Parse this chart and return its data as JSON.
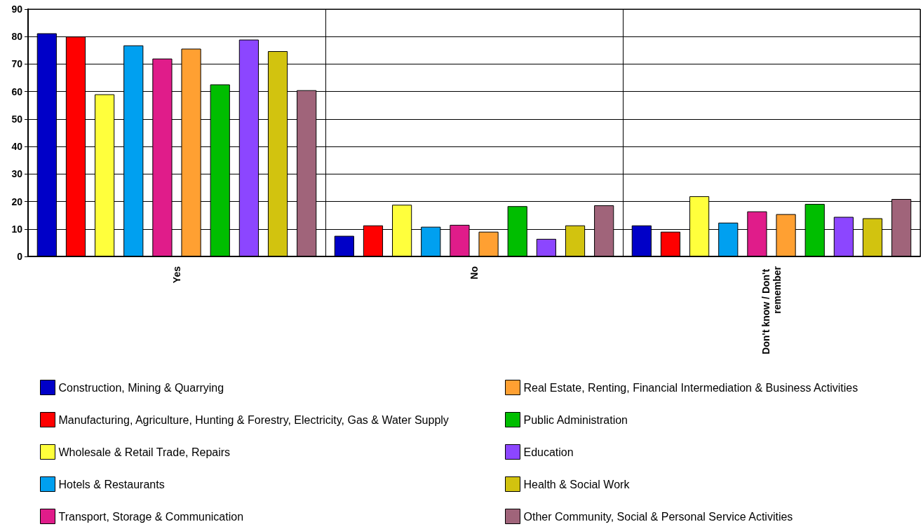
{
  "chart_data": {
    "type": "bar",
    "categories": [
      "Yes",
      "No",
      "Don't know / Don't remember"
    ],
    "series": [
      {
        "name": "Construction, Mining & Quarrying",
        "color": "#0000c8",
        "values": [
          81.2,
          7.5,
          11.3
        ]
      },
      {
        "name": "Manufacturing, Agriculture, Hunting & Forestry, Electricity, Gas & Water Supply",
        "color": "#ff0000",
        "values": [
          80,
          11.3,
          9
        ]
      },
      {
        "name": "Wholesale & Retail Trade, Repairs",
        "color": "#ffff3c",
        "values": [
          59,
          18.8,
          21.9
        ]
      },
      {
        "name": "Hotels & Restaurants",
        "color": "#00a0f0",
        "values": [
          76.8,
          10.8,
          12.3
        ]
      },
      {
        "name": "Transport, Storage & Communication",
        "color": "#e01c8a",
        "values": [
          72,
          11.5,
          16.4
        ]
      },
      {
        "name": "Real Estate, Renting, Financial Intermediation & Business Activities",
        "color": "#ffa032",
        "values": [
          75.6,
          9,
          15.4
        ]
      },
      {
        "name": "Public Administration",
        "color": "#00be00",
        "values": [
          62.6,
          18.3,
          19.1
        ]
      },
      {
        "name": "Education",
        "color": "#8c46ff",
        "values": [
          78.9,
          6.4,
          14.4
        ]
      },
      {
        "name": "Health & Social Work",
        "color": "#d2c30f",
        "values": [
          74.7,
          11.3,
          13.9
        ]
      },
      {
        "name": "Other Community, Social & Personal Service Activities",
        "color": "#a0647a",
        "values": [
          60.5,
          18.6,
          20.9
        ]
      }
    ],
    "ylim": [
      0,
      90
    ],
    "yticks": [
      0,
      10,
      20,
      30,
      40,
      50,
      60,
      70,
      80,
      90
    ],
    "grid": true,
    "legend": "bottom"
  }
}
